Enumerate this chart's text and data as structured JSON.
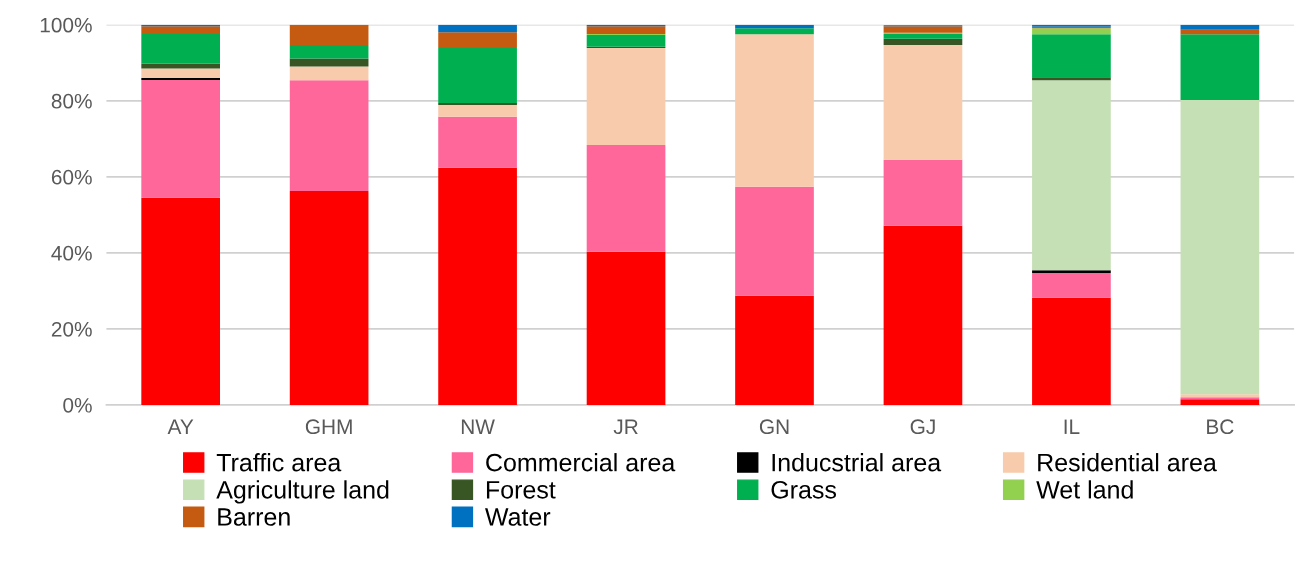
{
  "chart_data": {
    "type": "bar",
    "stacked": true,
    "categories": [
      "AY",
      "GHM",
      "NW",
      "JR",
      "GN",
      "GJ",
      "IL",
      "BC"
    ],
    "series": [
      {
        "name": "Traffic area",
        "color": "#ff0000",
        "values": [
          54.5,
          56.3,
          62.4,
          40.3,
          28.7,
          47.1,
          28.2,
          1.5
        ]
      },
      {
        "name": "Commercial area",
        "color": "#ff6699",
        "values": [
          31.0,
          29.1,
          13.4,
          28.1,
          28.7,
          17.4,
          6.5,
          0.5
        ]
      },
      {
        "name": "Inducstrial area",
        "color": "#000000",
        "values": [
          0.5,
          0,
          0,
          0,
          0,
          0,
          0.7,
          0
        ]
      },
      {
        "name": "Residential area",
        "color": "#f8cbad",
        "values": [
          2.5,
          3.6,
          3.1,
          25.5,
          40.1,
          30.2,
          0,
          0.8
        ]
      },
      {
        "name": "Agriculture land",
        "color": "#c5e0b4",
        "values": [
          0,
          0,
          0,
          0,
          0,
          0,
          50.0,
          77.4
        ]
      },
      {
        "name": "Forest",
        "color": "#375623",
        "values": [
          1.3,
          2.1,
          0.5,
          0.3,
          0,
          1.6,
          0.8,
          0
        ]
      },
      {
        "name": "Grass",
        "color": "#00b050",
        "values": [
          7.8,
          3.6,
          14.5,
          3.1,
          1.6,
          1.3,
          11.3,
          17.3
        ]
      },
      {
        "name": "Wet land",
        "color": "#92d050",
        "values": [
          0,
          0,
          0,
          0.3,
          0,
          0.3,
          1.6,
          0
        ]
      },
      {
        "name": "Barren",
        "color": "#c55a11",
        "values": [
          2.0,
          5.3,
          4.1,
          2.0,
          0,
          1.7,
          0.4,
          1.2
        ]
      },
      {
        "name": "Water",
        "color": "#0070c0",
        "values": [
          0.4,
          0,
          2.0,
          0.4,
          0.9,
          0.3,
          0.5,
          1.3
        ]
      }
    ],
    "ylim": [
      0,
      100
    ],
    "yticks": [
      {
        "value": 0,
        "label": "0%"
      },
      {
        "value": 20,
        "label": "20%"
      },
      {
        "value": 40,
        "label": "40%"
      },
      {
        "value": 60,
        "label": "60%"
      },
      {
        "value": 80,
        "label": "80%"
      },
      {
        "value": 100,
        "label": "100%"
      }
    ],
    "grid": "y",
    "legend": "bottom"
  }
}
